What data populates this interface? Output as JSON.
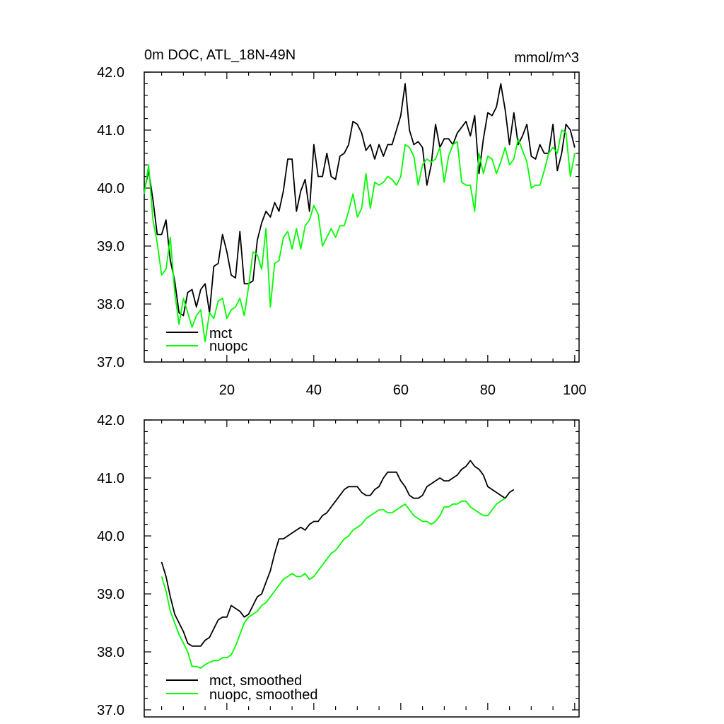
{
  "chart_data": [
    {
      "type": "line",
      "title": "0m DOC, ATL_18N-49N",
      "units": "mmol/m^3",
      "xlabel": "",
      "ylabel": "",
      "xlim": [
        1,
        101
      ],
      "ylim": [
        37.0,
        42.0
      ],
      "x_ticks": [
        20,
        40,
        60,
        80,
        100
      ],
      "y_ticks": [
        "37.0",
        "38.0",
        "39.0",
        "40.0",
        "41.0",
        "42.0"
      ],
      "legend_position": "bottom-left",
      "series": [
        {
          "name": "mct",
          "color": "#000000",
          "x_start": 1,
          "values": [
            39.95,
            40.3,
            39.8,
            39.2,
            39.2,
            39.45,
            38.75,
            38.4,
            37.85,
            37.8,
            38.2,
            38.25,
            37.95,
            38.25,
            38.35,
            37.85,
            38.65,
            38.7,
            39.2,
            38.9,
            38.5,
            38.45,
            39.25,
            38.35,
            38.35,
            38.4,
            39.1,
            39.4,
            39.6,
            39.5,
            39.75,
            39.6,
            39.95,
            40.5,
            40.5,
            39.6,
            39.95,
            40.15,
            39.6,
            40.75,
            40.2,
            40.2,
            40.6,
            40.2,
            40.15,
            40.55,
            40.6,
            40.75,
            41.15,
            41.1,
            40.95,
            40.65,
            40.75,
            40.5,
            40.75,
            40.55,
            40.75,
            40.75,
            41.0,
            41.25,
            41.8,
            41.0,
            40.75,
            40.8,
            40.7,
            40.05,
            40.4,
            41.1,
            40.7,
            40.85,
            40.85,
            40.75,
            40.95,
            41.05,
            41.15,
            40.9,
            41.25,
            40.25,
            40.85,
            41.3,
            41.25,
            41.4,
            41.8,
            41.35,
            40.75,
            41.3,
            40.75,
            40.9,
            41.1,
            40.55,
            40.5,
            40.75,
            40.6,
            40.6,
            41.1,
            40.3,
            40.6,
            41.1,
            41.0,
            40.7
          ]
        },
        {
          "name": "nuopc",
          "color": "#00ff00",
          "x_start": 1,
          "values": [
            39.9,
            40.4,
            39.45,
            39.05,
            38.5,
            38.6,
            39.15,
            38.2,
            37.65,
            38.1,
            37.85,
            37.6,
            37.8,
            37.9,
            37.35,
            37.85,
            37.75,
            38.05,
            38.1,
            37.75,
            37.9,
            37.95,
            38.1,
            37.8,
            38.3,
            38.9,
            38.85,
            38.6,
            39.3,
            37.95,
            38.7,
            38.75,
            39.15,
            39.25,
            38.95,
            39.3,
            38.95,
            39.35,
            39.45,
            39.7,
            39.55,
            39.0,
            39.15,
            39.3,
            39.15,
            39.35,
            39.35,
            39.6,
            39.9,
            39.5,
            39.65,
            40.25,
            39.65,
            40.1,
            40.05,
            40.1,
            40.2,
            40.15,
            40.05,
            40.2,
            40.75,
            40.7,
            40.55,
            40.05,
            40.4,
            40.5,
            40.45,
            40.5,
            40.7,
            40.1,
            40.55,
            40.75,
            40.8,
            40.1,
            40.05,
            40.05,
            39.6,
            40.6,
            40.25,
            40.55,
            40.5,
            40.25,
            40.45,
            40.7,
            40.4,
            40.5,
            40.85,
            40.65,
            40.45,
            40.0,
            40.05,
            40.05,
            40.3,
            40.6,
            40.7,
            40.6,
            41.0,
            40.95,
            40.2,
            40.6
          ]
        }
      ]
    },
    {
      "type": "line",
      "title": "",
      "xlabel": "",
      "ylabel": "",
      "xlim": [
        1,
        101
      ],
      "ylim": [
        37.0,
        42.0
      ],
      "y_ticks": [
        "37.0",
        "38.0",
        "39.0",
        "40.0",
        "41.0",
        "42.0"
      ],
      "legend_position": "bottom-left",
      "series": [
        {
          "name": "mct, smoothed",
          "color": "#000000",
          "x_start": 5,
          "values": [
            39.55,
            39.3,
            38.95,
            38.65,
            38.5,
            38.35,
            38.15,
            38.1,
            38.1,
            38.1,
            38.2,
            38.25,
            38.4,
            38.55,
            38.6,
            38.6,
            38.8,
            38.75,
            38.7,
            38.6,
            38.65,
            38.8,
            38.95,
            39.0,
            39.2,
            39.4,
            39.7,
            39.95,
            39.95,
            40.0,
            40.05,
            40.1,
            40.15,
            40.1,
            40.2,
            40.25,
            40.25,
            40.35,
            40.4,
            40.5,
            40.6,
            40.7,
            40.8,
            40.85,
            40.85,
            40.85,
            40.75,
            40.7,
            40.7,
            40.8,
            40.85,
            41.0,
            41.1,
            41.1,
            41.1,
            40.95,
            40.85,
            40.7,
            40.65,
            40.65,
            40.7,
            40.85,
            40.9,
            40.95,
            41.0,
            40.95,
            40.95,
            41.0,
            41.05,
            41.15,
            41.2,
            41.3,
            41.2,
            41.15,
            41.05,
            40.85,
            40.8,
            40.75,
            40.7,
            40.65,
            40.75,
            40.8
          ]
        },
        {
          "name": "nuopc, smoothed",
          "color": "#00ff00",
          "x_start": 5,
          "values": [
            39.3,
            39.05,
            38.7,
            38.5,
            38.3,
            38.15,
            38.0,
            37.75,
            37.75,
            37.72,
            37.78,
            37.82,
            37.85,
            37.85,
            37.9,
            37.9,
            37.95,
            38.1,
            38.3,
            38.5,
            38.6,
            38.65,
            38.7,
            38.8,
            38.85,
            38.95,
            39.05,
            39.15,
            39.25,
            39.3,
            39.35,
            39.3,
            39.3,
            39.35,
            39.25,
            39.3,
            39.4,
            39.5,
            39.6,
            39.7,
            39.75,
            39.85,
            39.95,
            40.0,
            40.1,
            40.15,
            40.2,
            40.3,
            40.35,
            40.4,
            40.45,
            40.45,
            40.4,
            40.4,
            40.45,
            40.5,
            40.55,
            40.45,
            40.35,
            40.3,
            40.25,
            40.25,
            40.2,
            40.25,
            40.35,
            40.5,
            40.5,
            40.55,
            40.55,
            40.6,
            40.6,
            40.5,
            40.45,
            40.4,
            40.35,
            40.35,
            40.45,
            40.55,
            40.6,
            40.65
          ]
        }
      ]
    }
  ]
}
